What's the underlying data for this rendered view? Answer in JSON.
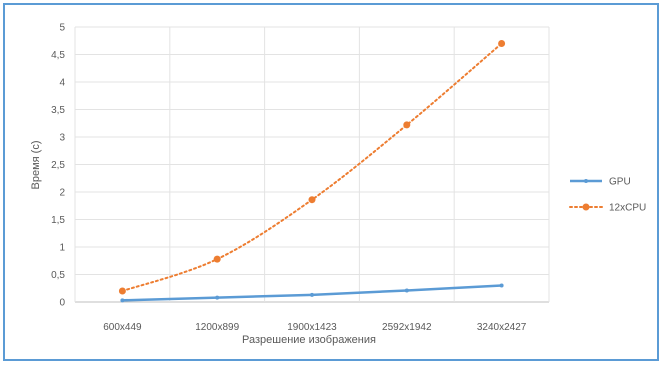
{
  "chart_data": {
    "type": "line",
    "title": "",
    "xlabel": "Разрешение изображения",
    "ylabel": "Время (с)",
    "categories": [
      "600x449",
      "1200x899",
      "1900x1423",
      "2592x1942",
      "3240x2427"
    ],
    "ylim": [
      0,
      5
    ],
    "yticks": [
      "0",
      "0,5",
      "1",
      "1,5",
      "2",
      "2,5",
      "3",
      "3,5",
      "4",
      "4,5",
      "5"
    ],
    "grid": true,
    "legend_position": "right",
    "series": [
      {
        "name": "GPU",
        "values": [
          0.03,
          0.08,
          0.13,
          0.21,
          0.3
        ],
        "color": "#5b9bd5",
        "style": "solid"
      },
      {
        "name": "12xCPU",
        "values": [
          0.2,
          0.78,
          1.86,
          3.22,
          4.7
        ],
        "color": "#ed7d31",
        "style": "dotted"
      }
    ]
  }
}
